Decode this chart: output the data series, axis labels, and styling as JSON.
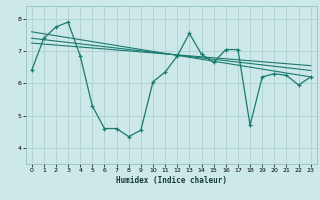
{
  "title": "",
  "xlabel": "Humidex (Indice chaleur)",
  "bg_color": "#cce8e8",
  "line_color": "#1a7a6e",
  "grid_color": "#aacccc",
  "xlim": [
    -0.5,
    23.5
  ],
  "ylim": [
    3.5,
    8.4
  ],
  "yticks": [
    4,
    5,
    6,
    7,
    8
  ],
  "xticks": [
    0,
    1,
    2,
    3,
    4,
    5,
    6,
    7,
    8,
    9,
    10,
    11,
    12,
    13,
    14,
    15,
    16,
    17,
    18,
    19,
    20,
    21,
    22,
    23
  ],
  "series1_x": [
    0,
    1,
    2,
    3,
    4,
    5,
    6,
    7,
    8,
    9,
    10,
    11,
    12,
    13,
    14,
    15,
    16,
    17,
    18,
    19,
    20,
    21,
    22,
    23
  ],
  "series1_y": [
    6.4,
    7.4,
    7.75,
    7.9,
    6.85,
    5.3,
    4.6,
    4.6,
    4.35,
    4.55,
    6.05,
    6.35,
    6.85,
    7.55,
    6.9,
    6.65,
    7.05,
    7.05,
    4.7,
    6.2,
    6.3,
    6.25,
    5.95,
    6.2
  ],
  "series2_x": [
    0,
    23
  ],
  "series2_y": [
    7.6,
    6.2
  ],
  "series3_x": [
    0,
    23
  ],
  "series3_y": [
    7.4,
    6.4
  ],
  "series4_x": [
    0,
    23
  ],
  "series4_y": [
    7.25,
    6.55
  ]
}
